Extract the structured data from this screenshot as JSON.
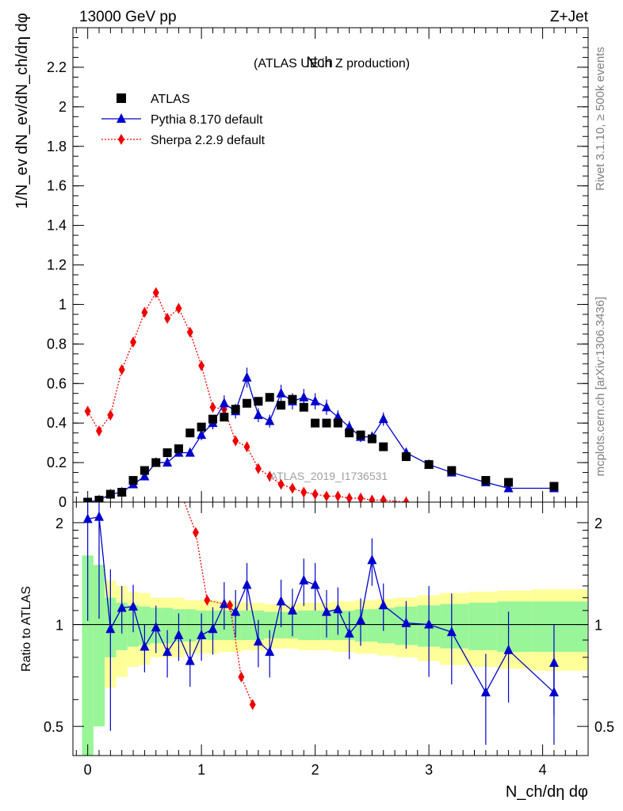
{
  "header": {
    "energy": "13000 GeV pp",
    "process": "Z+Jet"
  },
  "sidebar": {
    "rivet": "Rivet 3.1.10, ≥ 500k events",
    "site": "mcplots.cern.ch [arXiv:1306.3436]"
  },
  "chart_data": {
    "type": "scatter",
    "title_main": "Nch",
    "title_sub": "(ATLAS UE in Z production)",
    "analysis_id": "ATLAS_2019_I1736531",
    "xlabel": "N_ch/dη dφ",
    "ylabel": "1/N_ev dN_ev/dN_ch/dη dφ",
    "ratio_ylabel": "Ratio to ATLAS",
    "xlim": [
      -0.13,
      4.4
    ],
    "ylim": [
      0,
      2.4
    ],
    "ratio_ylim": [
      0.41,
      2.3
    ],
    "x_ticks": [
      "0",
      "1",
      "2",
      "3",
      "4"
    ],
    "y_ticks": [
      "0",
      "0.2",
      "0.4",
      "0.6",
      "0.8",
      "1",
      "1.2",
      "1.4",
      "1.6",
      "1.8",
      "2",
      "2.2"
    ],
    "ratio_ticks": [
      "0.5",
      "1",
      "2"
    ],
    "legend": [
      "ATLAS",
      "Pythia 8.170 default",
      "Sherpa 2.2.9 default"
    ],
    "colors": {
      "data": "#000000",
      "pythia": "#0000cc",
      "sherpa": "#ee0000",
      "band_inner": "#98f598",
      "band_outer": "#ffff99"
    },
    "series": [
      {
        "name": "ATLAS",
        "x": [
          0.0,
          0.1,
          0.2,
          0.3,
          0.4,
          0.5,
          0.6,
          0.7,
          0.8,
          0.9,
          1.0,
          1.1,
          1.2,
          1.3,
          1.4,
          1.5,
          1.6,
          1.7,
          1.8,
          1.9,
          2.0,
          2.1,
          2.2,
          2.3,
          2.4,
          2.5,
          2.6,
          2.8,
          3.0,
          3.2,
          3.5,
          3.7,
          4.1
        ],
        "y": [
          0.0,
          0.01,
          0.04,
          0.05,
          0.11,
          0.16,
          0.2,
          0.25,
          0.27,
          0.35,
          0.38,
          0.42,
          0.43,
          0.47,
          0.5,
          0.51,
          0.53,
          0.49,
          0.52,
          0.48,
          0.4,
          0.4,
          0.4,
          0.35,
          0.34,
          0.32,
          0.28,
          0.23,
          0.19,
          0.16,
          0.11,
          0.1,
          0.08
        ]
      },
      {
        "name": "Pythia 8.170 default",
        "x": [
          0.0,
          0.1,
          0.2,
          0.3,
          0.4,
          0.5,
          0.6,
          0.7,
          0.8,
          0.9,
          1.0,
          1.1,
          1.2,
          1.3,
          1.4,
          1.5,
          1.6,
          1.7,
          1.8,
          1.9,
          2.0,
          2.1,
          2.2,
          2.3,
          2.4,
          2.5,
          2.6,
          2.8,
          3.0,
          3.2,
          3.5,
          3.7,
          4.1
        ],
        "y": [
          0.0,
          0.01,
          0.04,
          0.05,
          0.09,
          0.13,
          0.2,
          0.2,
          0.25,
          0.25,
          0.34,
          0.4,
          0.5,
          0.46,
          0.63,
          0.44,
          0.41,
          0.55,
          0.51,
          0.53,
          0.51,
          0.48,
          0.43,
          0.38,
          0.33,
          0.33,
          0.42,
          0.25,
          0.19,
          0.15,
          0.1,
          0.07,
          0.07
        ]
      },
      {
        "name": "Sherpa 2.2.9 default",
        "x": [
          0.0,
          0.1,
          0.2,
          0.3,
          0.4,
          0.5,
          0.6,
          0.7,
          0.8,
          0.9,
          1.0,
          1.1,
          1.2,
          1.3,
          1.4,
          1.5,
          1.6,
          1.7,
          1.8,
          1.9,
          2.0,
          2.1,
          2.2,
          2.3,
          2.4,
          2.5,
          2.6,
          2.8
        ],
        "y": [
          0.46,
          0.36,
          0.44,
          0.67,
          0.81,
          0.96,
          1.06,
          0.93,
          0.98,
          0.86,
          0.69,
          0.48,
          0.47,
          0.31,
          0.28,
          0.17,
          0.13,
          0.09,
          0.07,
          0.05,
          0.04,
          0.03,
          0.03,
          0.02,
          0.02,
          0.01,
          0.01,
          0.0
        ]
      }
    ],
    "ratio": {
      "pythia": [
        2.05,
        2.08,
        0.97,
        1.12,
        1.13,
        0.86,
        0.98,
        0.83,
        0.93,
        0.78,
        0.93,
        0.97,
        1.15,
        1.09,
        1.31,
        0.89,
        0.83,
        1.17,
        1.1,
        1.35,
        1.31,
        1.09,
        1.11,
        0.94,
        1.03,
        1.55,
        1.14,
        1.01,
        1.0,
        0.95,
        0.63,
        0.84,
        0.63,
        0.77
      ],
      "sherpa": [
        2.3,
        1.87,
        1.18,
        1.14,
        0.7,
        0.58
      ]
    }
  }
}
